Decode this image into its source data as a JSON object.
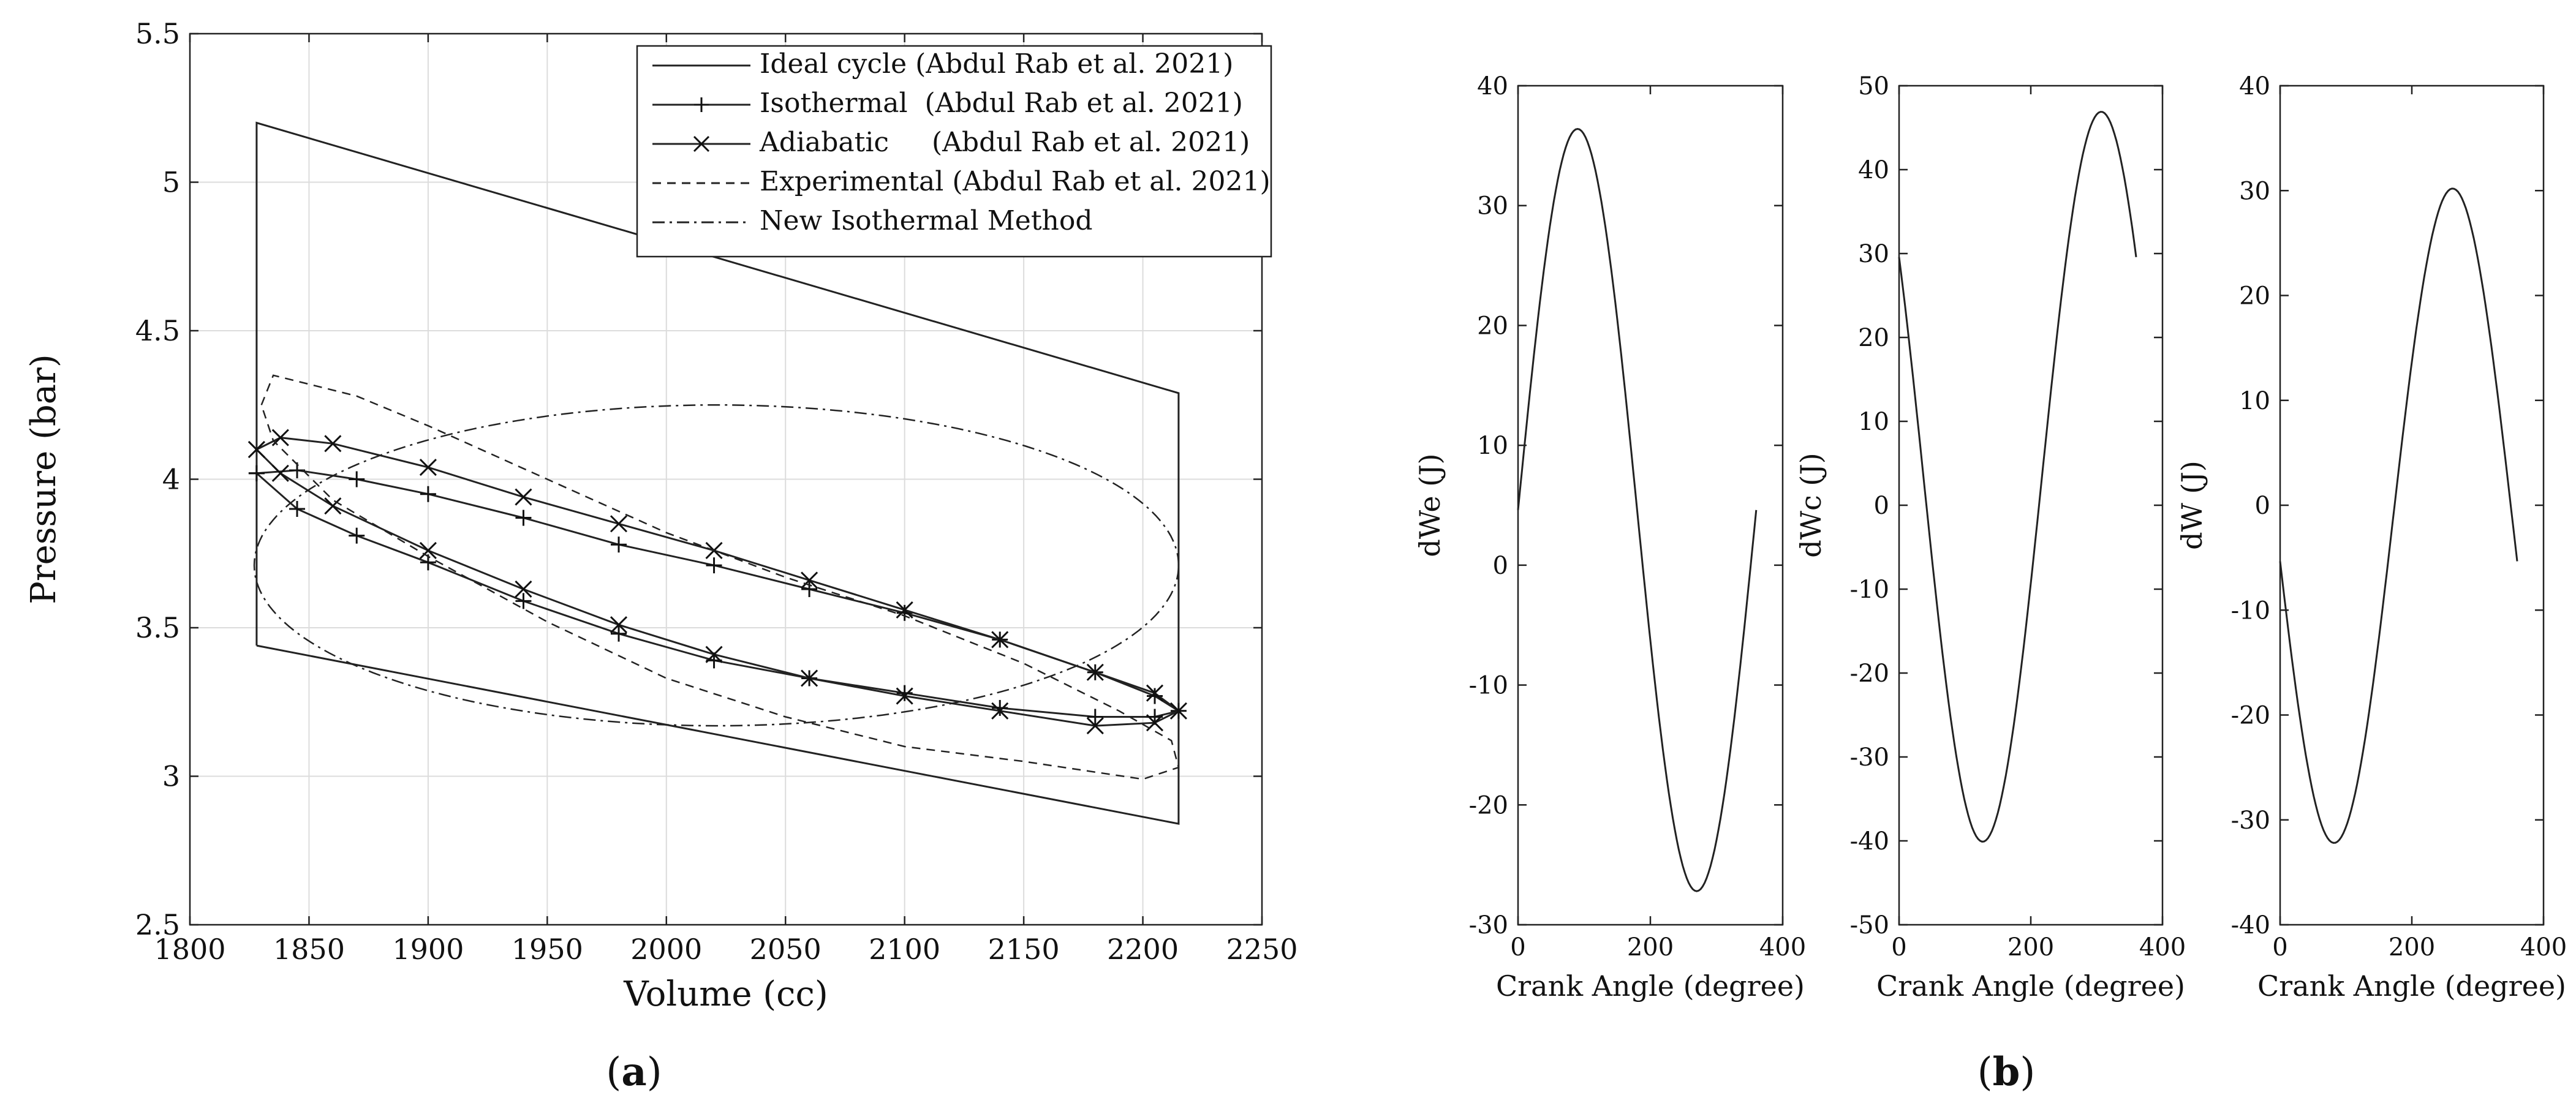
{
  "chart_data": [
    {
      "id": "a",
      "type": "line",
      "caption_label": "a",
      "xlabel": "Volume (cc)",
      "ylabel": "Pressure (bar)",
      "xlim": [
        1800,
        2250
      ],
      "ylim": [
        2.5,
        5.5
      ],
      "xticks": [
        1800,
        1850,
        1900,
        1950,
        2000,
        2050,
        2100,
        2150,
        2200,
        2250
      ],
      "yticks": [
        2.5,
        3,
        3.5,
        4,
        4.5,
        5,
        5.5
      ],
      "ytick_labels": [
        "2.5",
        "3",
        "3.5",
        "4",
        "4.5",
        "5",
        "5.5"
      ],
      "grid": true,
      "legend_position": "top-right",
      "series": [
        {
          "name": "Ideal cycle (Abdul Rab et al. 2021)",
          "style": "solid",
          "marker": "none",
          "points": [
            [
              1828,
              3.44
            ],
            [
              1828,
              5.2
            ],
            [
              2215,
              4.29
            ],
            [
              2215,
              2.84
            ],
            [
              1828,
              3.44
            ]
          ]
        },
        {
          "name": "Isothermal  (Abdul Rab et al. 2021)",
          "style": "solid",
          "marker": "plus",
          "points": [
            [
              1828,
              4.02
            ],
            [
              1845,
              4.03
            ],
            [
              1870,
              4.0
            ],
            [
              1900,
              3.95
            ],
            [
              1940,
              3.87
            ],
            [
              1980,
              3.78
            ],
            [
              2020,
              3.71
            ],
            [
              2060,
              3.63
            ],
            [
              2100,
              3.55
            ],
            [
              2140,
              3.46
            ],
            [
              2180,
              3.35
            ],
            [
              2205,
              3.27
            ],
            [
              2215,
              3.22
            ],
            [
              2205,
              3.2
            ],
            [
              2180,
              3.2
            ],
            [
              2140,
              3.23
            ],
            [
              2100,
              3.28
            ],
            [
              2060,
              3.33
            ],
            [
              2020,
              3.39
            ],
            [
              1980,
              3.48
            ],
            [
              1940,
              3.59
            ],
            [
              1900,
              3.72
            ],
            [
              1870,
              3.81
            ],
            [
              1845,
              3.9
            ],
            [
              1828,
              4.02
            ]
          ]
        },
        {
          "name": "Adiabatic     (Abdul Rab et al. 2021)",
          "style": "solid",
          "marker": "cross",
          "points": [
            [
              1828,
              4.1
            ],
            [
              1838,
              4.14
            ],
            [
              1860,
              4.12
            ],
            [
              1900,
              4.04
            ],
            [
              1940,
              3.94
            ],
            [
              1980,
              3.85
            ],
            [
              2020,
              3.76
            ],
            [
              2060,
              3.66
            ],
            [
              2100,
              3.56
            ],
            [
              2140,
              3.46
            ],
            [
              2180,
              3.35
            ],
            [
              2205,
              3.28
            ],
            [
              2215,
              3.22
            ],
            [
              2205,
              3.18
            ],
            [
              2180,
              3.17
            ],
            [
              2140,
              3.22
            ],
            [
              2100,
              3.27
            ],
            [
              2060,
              3.33
            ],
            [
              2020,
              3.41
            ],
            [
              1980,
              3.51
            ],
            [
              1940,
              3.63
            ],
            [
              1900,
              3.76
            ],
            [
              1860,
              3.91
            ],
            [
              1838,
              4.02
            ],
            [
              1828,
              4.1
            ]
          ]
        },
        {
          "name": "Experimental (Abdul Rab et al. 2021)",
          "style": "dashed",
          "marker": "none",
          "points": [
            [
              1830,
              4.25
            ],
            [
              1835,
              4.35
            ],
            [
              1850,
              4.32
            ],
            [
              1870,
              4.28
            ],
            [
              1900,
              4.18
            ],
            [
              1950,
              4.0
            ],
            [
              2000,
              3.82
            ],
            [
              2050,
              3.67
            ],
            [
              2100,
              3.54
            ],
            [
              2150,
              3.38
            ],
            [
              2190,
              3.22
            ],
            [
              2212,
              3.12
            ],
            [
              2215,
              3.03
            ],
            [
              2200,
              2.99
            ],
            [
              2175,
              3.02
            ],
            [
              2150,
              3.05
            ],
            [
              2100,
              3.1
            ],
            [
              2050,
              3.2
            ],
            [
              2000,
              3.33
            ],
            [
              1950,
              3.52
            ],
            [
              1900,
              3.74
            ],
            [
              1860,
              3.93
            ],
            [
              1835,
              4.13
            ],
            [
              1830,
              4.25
            ]
          ]
        },
        {
          "name": "New Isothermal Method",
          "style": "dashdot",
          "marker": "none",
          "ellipse": {
            "center": [
              2021,
              3.71
            ],
            "radius": [
              194,
              0.54
            ]
          }
        }
      ]
    },
    {
      "id": "b1",
      "type": "line",
      "xlabel": "Crank Angle (degree)",
      "ylabel": "dWe (J)",
      "xlim": [
        0,
        400
      ],
      "ylim": [
        -30,
        40
      ],
      "xticks": [
        0,
        200,
        400
      ],
      "yticks": [
        -30,
        -20,
        -10,
        0,
        10,
        20,
        30,
        40
      ],
      "series": [
        {
          "name": "dWe",
          "offset": 4.6,
          "amplitude": 31.8,
          "phase_deg": 0
        }
      ]
    },
    {
      "id": "b2",
      "type": "line",
      "xlabel": "Crank Angle (degree)",
      "ylabel": "dWc (J)",
      "xlim": [
        0,
        400
      ],
      "ylim": [
        -50,
        50
      ],
      "xticks": [
        0,
        200,
        400
      ],
      "yticks": [
        -50,
        -40,
        -30,
        -20,
        -10,
        0,
        10,
        20,
        30,
        40,
        50
      ],
      "series": [
        {
          "name": "dWc",
          "offset": 3.4,
          "amplitude": -43.5,
          "phase_deg": 323
        }
      ]
    },
    {
      "id": "b3",
      "type": "line",
      "xlabel": "Crank Angle (degree)",
      "ylabel": "dW (J)",
      "xlim": [
        0,
        400
      ],
      "ylim": [
        -40,
        40
      ],
      "xticks": [
        0,
        200,
        400
      ],
      "yticks": [
        -40,
        -30,
        -20,
        -10,
        0,
        10,
        20,
        30,
        40
      ],
      "series": [
        {
          "name": "dW",
          "offset": -1,
          "amplitude": -31.2,
          "phase_deg": 8
        }
      ]
    }
  ],
  "captions": {
    "a": "a",
    "b": "b"
  }
}
